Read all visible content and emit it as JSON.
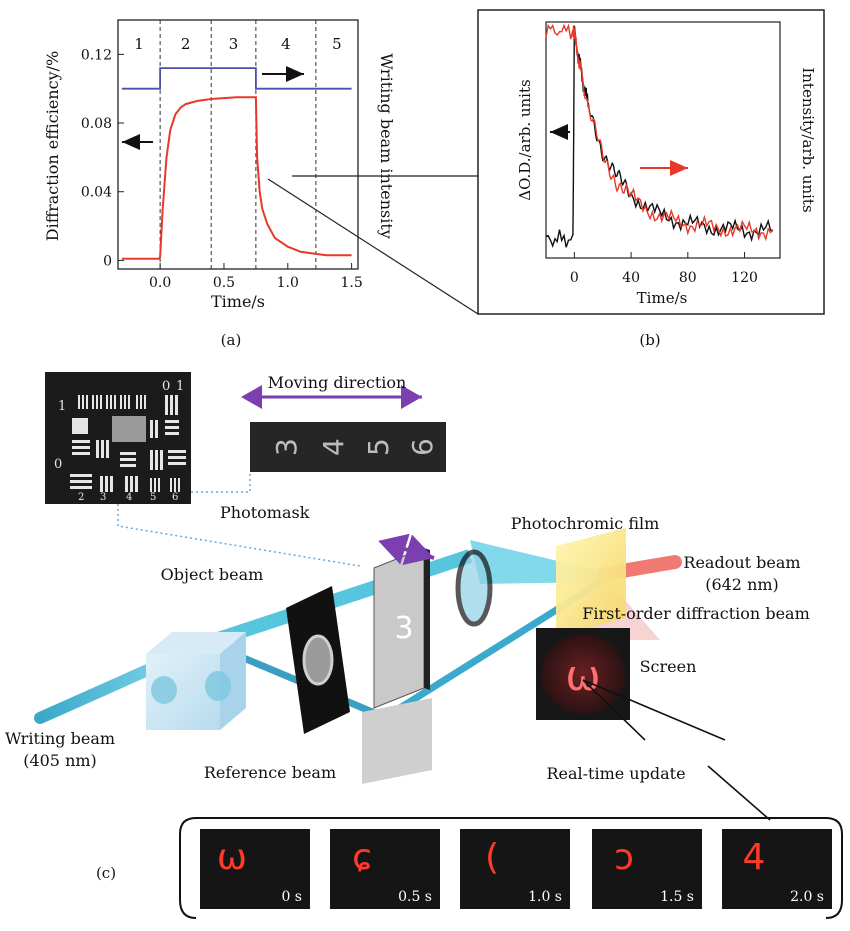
{
  "panel_labels": {
    "a": "(a)",
    "b": "(b)",
    "c": "(c)"
  },
  "chart_data": [
    {
      "type": "line",
      "panel": "(a)",
      "xlabel": "Time/s",
      "ylabel": "Diffraction efficiency/%",
      "ylabel_right": "Writing beam intensity",
      "xlim": [
        -0.33,
        1.55
      ],
      "ylim": [
        -0.005,
        0.14
      ],
      "xticks": [
        "0.0",
        "0.5",
        "1.0",
        "1.5"
      ],
      "yticks": [
        "0",
        "0.04",
        "0.08",
        "0.12"
      ],
      "region_labels": [
        "1",
        "2",
        "3",
        "4",
        "5"
      ],
      "region_bounds": [
        0.0,
        0.4,
        0.75,
        1.22
      ],
      "series": [
        {
          "color": "#e8382a",
          "x": [
            -0.3,
            -0.01,
            0.0,
            0.02,
            0.05,
            0.08,
            0.12,
            0.16,
            0.2,
            0.25,
            0.3,
            0.4,
            0.5,
            0.6,
            0.7,
            0.75,
            0.76,
            0.78,
            0.8,
            0.84,
            0.9,
            1.0,
            1.1,
            1.2,
            1.3,
            1.4,
            1.5
          ],
          "y": [
            0.001,
            0.001,
            0.002,
            0.03,
            0.06,
            0.076,
            0.085,
            0.089,
            0.091,
            0.092,
            0.093,
            0.094,
            0.0945,
            0.095,
            0.095,
            0.095,
            0.06,
            0.04,
            0.03,
            0.021,
            0.013,
            0.008,
            0.005,
            0.004,
            0.003,
            0.003,
            0.003
          ]
        },
        {
          "color": "#4b50a8",
          "x": [
            -0.3,
            0.0,
            0.0,
            0.75,
            0.75,
            1.5
          ],
          "y": [
            0.1,
            0.1,
            0.112,
            0.112,
            0.1,
            0.1
          ]
        }
      ]
    },
    {
      "type": "line",
      "panel": "(b)",
      "xlabel": "Time/s",
      "ylabel": "ΔO.D./arb. units",
      "ylabel_right": "Intensity/arb. units",
      "xlim": [
        -20,
        145
      ],
      "xticks": [
        "0",
        "40",
        "80",
        "120"
      ],
      "series": [
        {
          "color": "#111111",
          "x": [
            -20,
            -1,
            0,
            5,
            10,
            20,
            30,
            40,
            60,
            80,
            100,
            120,
            140
          ],
          "y": [
            0.05,
            0.05,
            1.0,
            0.8,
            0.65,
            0.45,
            0.33,
            0.25,
            0.16,
            0.12,
            0.1,
            0.09,
            0.09
          ]
        },
        {
          "color": "#e8382a",
          "x": [
            -20,
            -1,
            0,
            5,
            10,
            20,
            30,
            40,
            60,
            80,
            100,
            120,
            140
          ],
          "y": [
            1.0,
            1.0,
            0.98,
            0.8,
            0.63,
            0.43,
            0.31,
            0.24,
            0.15,
            0.12,
            0.1,
            0.09,
            0.09
          ]
        }
      ]
    }
  ],
  "diagram": {
    "moving_direction": "Moving direction",
    "photomask": "Photomask",
    "photochromic_film": "Photochromic film",
    "readout_beam": "Readout beam",
    "readout_wavelength": "(642 nm)",
    "object_beam": "Object beam",
    "first_order": "First-order diffraction beam",
    "screen": "Screen",
    "writing_beam": "Writing beam",
    "writing_wavelength": "(405 nm)",
    "reference_beam": "Reference beam",
    "real_time_update": "Real-time update",
    "strip_digits": [
      "3",
      "4",
      "5",
      "6"
    ],
    "sample_digit": "3",
    "screen_glyph": "ω",
    "mask_digits": [
      "0",
      "1",
      "2",
      "3",
      "4",
      "5",
      "6"
    ],
    "frames": [
      {
        "time": "0 s",
        "glyph": "ω"
      },
      {
        "time": "0.5 s",
        "glyph": "ɕ"
      },
      {
        "time": "1.0 s",
        "glyph": "("
      },
      {
        "time": "1.5 s",
        "glyph": "ɔ"
      },
      {
        "time": "2.0 s",
        "glyph": "4"
      }
    ]
  },
  "colors": {
    "red_trace": "#e8382a",
    "blue_trace": "#4b50a8",
    "beam_cyan": "#4fc4e0",
    "arrow_purple": "#7b3fb0",
    "readout_red": "#f07a72"
  }
}
